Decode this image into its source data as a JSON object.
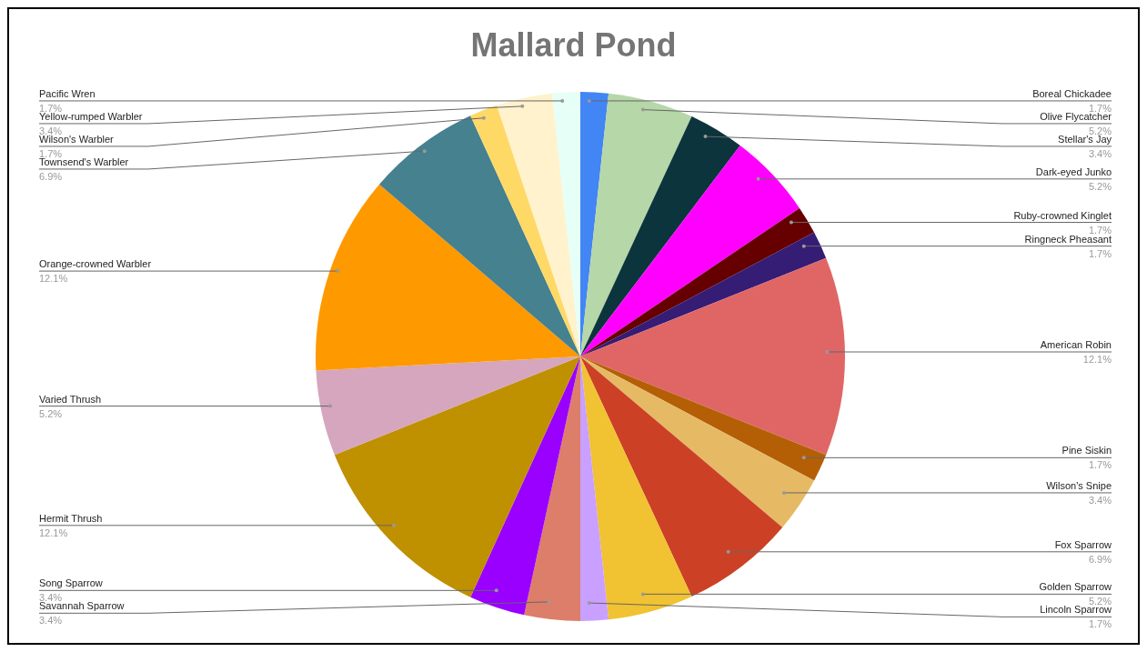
{
  "chart_data": {
    "type": "pie",
    "title": "Mallard Pond",
    "categories": [
      "Boreal Chickadee",
      "Olive Flycatcher",
      "Stellar's Jay",
      "Dark-eyed Junko",
      "Ruby-crowned Kinglet",
      "Ringneck Pheasant",
      "American Robin",
      "Pine Siskin",
      "Wilson's Snipe",
      "Fox Sparrow",
      "Golden Sparrow",
      "Lincoln Sparrow",
      "Savannah Sparrow",
      "Song Sparrow",
      "Hermit Thrush",
      "Varied Thrush",
      "Orange-crowned Warbler",
      "Townsend's Warbler",
      "Wilson's Warbler",
      "Yellow-rumped Warbler",
      "Pacific Wren"
    ],
    "values": [
      1.7,
      5.2,
      3.4,
      5.2,
      1.7,
      1.7,
      12.1,
      1.7,
      3.4,
      6.9,
      5.2,
      1.7,
      3.4,
      3.4,
      12.1,
      5.2,
      12.1,
      6.9,
      1.7,
      3.4,
      1.7
    ],
    "value_labels": [
      "1.7%",
      "5.2%",
      "3.4%",
      "5.2%",
      "1.7%",
      "1.7%",
      "12.1%",
      "1.7%",
      "3.4%",
      "6.9%",
      "5.2%",
      "1.7%",
      "3.4%",
      "3.4%",
      "12.1%",
      "5.2%",
      "12.1%",
      "6.9%",
      "1.7%",
      "3.4%",
      "1.7%"
    ],
    "colors": [
      "#4285f4",
      "#b6d7a8",
      "#0c343d",
      "#ff00ff",
      "#660000",
      "#351c75",
      "#e06666",
      "#b45f06",
      "#e6b965",
      "#cc4125",
      "#f1c232",
      "#c9a0ff",
      "#dd7e6b",
      "#9900ff",
      "#bf9000",
      "#d5a6bd",
      "#ff9900",
      "#45818e",
      "#ffd966",
      "#fff2cc",
      "#e6fff7"
    ]
  }
}
